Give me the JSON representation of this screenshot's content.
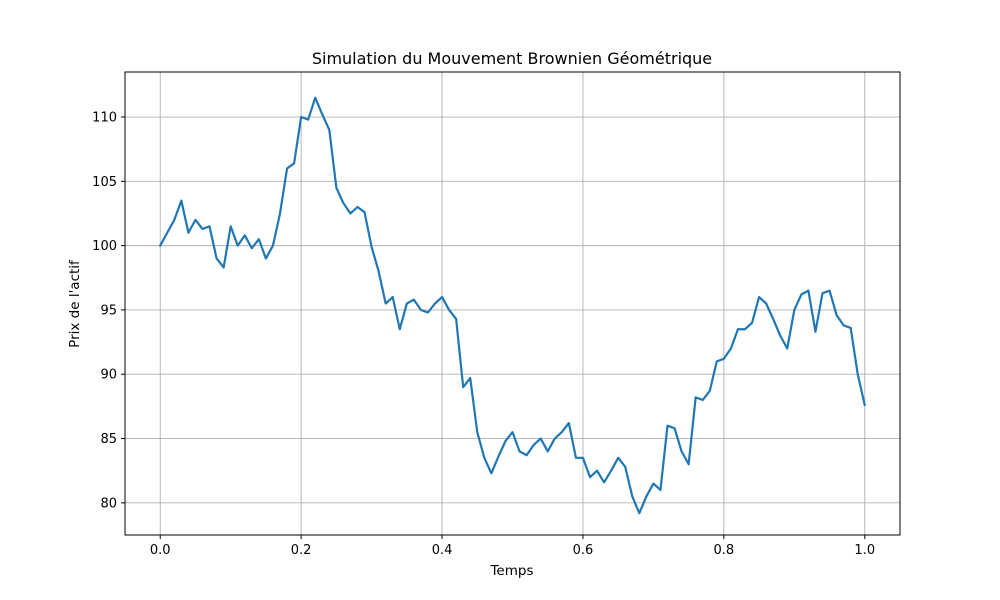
{
  "chart_data": {
    "type": "line",
    "title": "Simulation du Mouvement Brownien Géométrique",
    "xlabel": "Temps",
    "ylabel": "Prix de l'actif",
    "xlim": [
      -0.05,
      1.05
    ],
    "ylim": [
      77.5,
      113.5
    ],
    "xticks": [
      0.0,
      0.2,
      0.4,
      0.6,
      0.8,
      1.0
    ],
    "xtick_labels": [
      "0.0",
      "0.2",
      "0.4",
      "0.6",
      "0.8",
      "1.0"
    ],
    "yticks": [
      80,
      85,
      90,
      95,
      100,
      105,
      110
    ],
    "ytick_labels": [
      "80",
      "85",
      "90",
      "95",
      "100",
      "105",
      "110"
    ],
    "grid": true,
    "line_color": "#1f77b4",
    "series": [
      {
        "x": [
          0.0,
          0.02,
          0.03,
          0.04,
          0.05,
          0.06,
          0.07,
          0.08,
          0.09,
          0.1,
          0.11,
          0.12,
          0.13,
          0.14,
          0.15,
          0.16,
          0.17,
          0.18,
          0.19,
          0.2,
          0.21,
          0.22,
          0.23,
          0.24,
          0.25,
          0.26,
          0.27,
          0.28,
          0.29,
          0.3,
          0.31,
          0.32,
          0.33,
          0.34,
          0.35,
          0.36,
          0.37,
          0.38,
          0.39,
          0.4,
          0.41,
          0.42,
          0.43,
          0.44,
          0.45,
          0.46,
          0.47,
          0.48,
          0.49,
          0.5,
          0.51,
          0.52,
          0.53,
          0.54,
          0.55,
          0.56,
          0.57,
          0.58,
          0.59,
          0.6,
          0.61,
          0.62,
          0.63,
          0.64,
          0.65,
          0.66,
          0.67,
          0.68,
          0.69,
          0.7,
          0.71,
          0.72,
          0.73,
          0.74,
          0.75,
          0.76,
          0.77,
          0.78,
          0.79,
          0.8,
          0.81,
          0.82,
          0.83,
          0.84,
          0.85,
          0.86,
          0.87,
          0.88,
          0.89,
          0.9,
          0.91,
          0.92,
          0.93,
          0.94,
          0.95,
          0.96,
          0.97,
          0.98,
          0.99,
          1.0
        ],
        "y": [
          100,
          102,
          103.5,
          101,
          102,
          101.3,
          101.5,
          99,
          98.3,
          101.5,
          100,
          100.8,
          99.8,
          100.5,
          99,
          100,
          102.5,
          106,
          106.4,
          110,
          109.8,
          111.5,
          110.2,
          109,
          104.5,
          103.3,
          102.5,
          103,
          102.6,
          99.9,
          98,
          95.5,
          96,
          93.5,
          95.5,
          95.8,
          95,
          94.8,
          95.5,
          96,
          95,
          94.3,
          89,
          89.7,
          85.5,
          83.5,
          82.3,
          83.6,
          84.8,
          85.5,
          84,
          83.7,
          84.5,
          85,
          84,
          85,
          85.5,
          86.2,
          83.5,
          83.5,
          82,
          82.5,
          81.6,
          82.5,
          83.5,
          82.8,
          80.5,
          79.2,
          80.5,
          81.5,
          81,
          86,
          85.8,
          84,
          83,
          88.2,
          88,
          88.7,
          91,
          91.2,
          92,
          93.5,
          93.5,
          94,
          96,
          95.5,
          94.3,
          93,
          92,
          95,
          96.2,
          96.5,
          93.3,
          96.3,
          96.5,
          94.6,
          93.8,
          93.6,
          90,
          87.6
        ]
      }
    ]
  }
}
